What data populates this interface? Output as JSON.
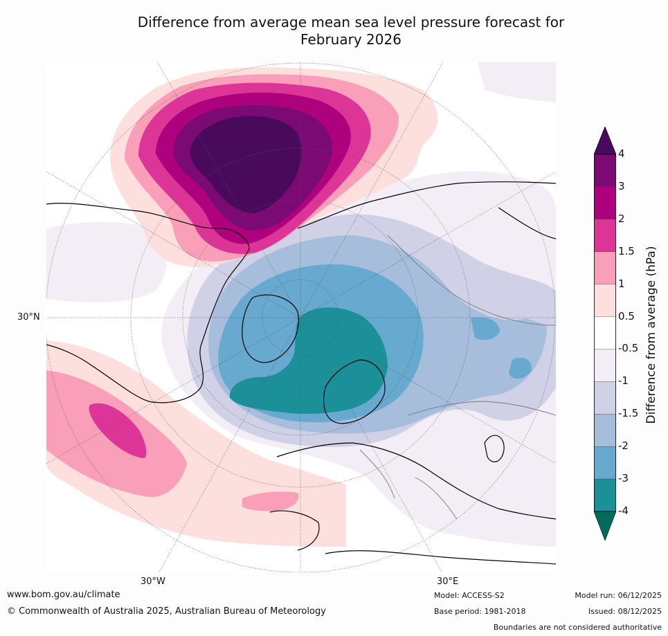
{
  "title_line1": "Difference from average mean sea level pressure forecast for",
  "title_line2": "February 2026",
  "map": {
    "projection": "north polar stereographic",
    "graticule_labels": {
      "lat": "30°N",
      "lon_left": "30°W",
      "lon_right": "30°E"
    }
  },
  "colorbar": {
    "title": "Difference from average (hPa)",
    "ticks": [
      "4",
      "3",
      "2",
      "1.5",
      "1",
      "0.5",
      "-0.5",
      "-1",
      "-1.5",
      "-2",
      "-3",
      "-4"
    ],
    "colors": {
      "gt4": "#4a0a5c",
      "3_4": "#7b0a74",
      "2_3": "#ae017e",
      "1.5_2": "#dd3497",
      "1_1.5": "#f99fba",
      "0.5_1": "#fde0dd",
      "n0.5_0.5": "#ffffff",
      "n1_n0.5": "#f3eef6",
      "n1.5_n1": "#d0d1e6",
      "n2_n1.5": "#a6bddb",
      "n3_n2": "#67a9cf",
      "n4_n3": "#1c9099",
      "lt_n4": "#016c59"
    }
  },
  "footer": {
    "website": "www.bom.gov.au/climate",
    "copyright": "© Commonwealth of Australia 2025, Australian Bureau of Meteorology",
    "model": "Model: ACCESS-S2",
    "base_period": "Base period: 1981-2018",
    "model_run": "Model run: 06/12/2025",
    "issued": "Issued: 08/12/2025",
    "disclaimer": "Boundaries are not considered authoritative"
  }
}
